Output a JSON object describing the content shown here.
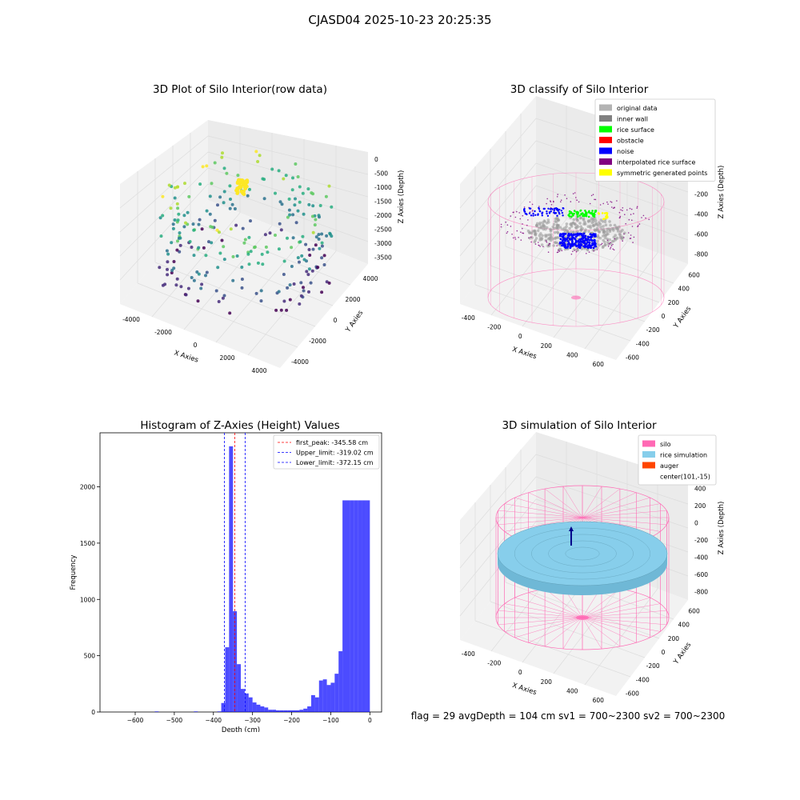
{
  "figure": {
    "title": "CJASD04 2025-10-23 20:25:35",
    "status": "flag = 29  avgDepth = 104 cm  sv1 = 700~2300  sv2 = 700~2300"
  },
  "chart_data": [
    {
      "type": "scatter",
      "title": "3D Plot of Silo Interior(row data)",
      "xlabel": "X Axies",
      "ylabel": "Y Axies",
      "zlabel": "Z Axies (Depth)",
      "x_ticks": [
        "-4000",
        "-2000",
        "0",
        "2000",
        "4000"
      ],
      "y_ticks": [
        "-4000",
        "-2000",
        "0",
        "2000",
        "4000"
      ],
      "z_ticks": [
        "0",
        "-500",
        "-1000",
        "-1500",
        "-2000",
        "-2500",
        "-3000",
        "-3500"
      ],
      "xlim": [
        -4500,
        4500
      ],
      "ylim": [
        -4500,
        4500
      ],
      "zlim": [
        -3800,
        100
      ],
      "colormap": "viridis",
      "grid": true
    },
    {
      "type": "scatter",
      "title": "3D classify of Silo Interior",
      "xlabel": "X Axies",
      "ylabel": "Y Axies",
      "zlabel": "Z Axies (Depth)",
      "x_ticks": [
        "-400",
        "-200",
        "0",
        "200",
        "400",
        "600"
      ],
      "y_ticks": [
        "-600",
        "-400",
        "-200",
        "0",
        "200",
        "400",
        "600"
      ],
      "z_ticks": [
        "200",
        "0",
        "-200",
        "-400",
        "-600",
        "-800"
      ],
      "xlim": [
        -550,
        750
      ],
      "ylim": [
        -650,
        650
      ],
      "zlim": [
        -900,
        300
      ],
      "grid": true,
      "legend_position": "top-right",
      "legend": [
        {
          "label": "original data",
          "color": "#b3b3b3"
        },
        {
          "label": "inner wall",
          "color": "#808080"
        },
        {
          "label": "rice surface",
          "color": "#00ff00"
        },
        {
          "label": "obstacle",
          "color": "#ff0000"
        },
        {
          "label": "noise",
          "color": "#0000ff"
        },
        {
          "label": "interpolated rice surface",
          "color": "#800080"
        },
        {
          "label": "symmetric generated points",
          "color": "#ffff00"
        }
      ]
    },
    {
      "type": "bar",
      "title": "Histogram of Z-Axies (Height) Values",
      "xlabel": "Depth (cm)",
      "ylabel": "Frequency",
      "xlim": [
        -690,
        30
      ],
      "ylim": [
        0,
        2480
      ],
      "x_ticks": [
        -600,
        -500,
        -400,
        -300,
        -200,
        -100,
        0
      ],
      "y_ticks": [
        0,
        500,
        1000,
        1500,
        2000
      ],
      "bin_width": 10,
      "bin_starts": [
        -550,
        -450,
        -390,
        -380,
        -370,
        -360,
        -350,
        -340,
        -330,
        -320,
        -310,
        -300,
        -290,
        -280,
        -270,
        -260,
        -250,
        -240,
        -230,
        -220,
        -210,
        -200,
        -190,
        -180,
        -170,
        -160,
        -150,
        -140,
        -130,
        -120,
        -110,
        -100,
        -90,
        -80,
        -70,
        -60,
        -50,
        -40,
        -30,
        -20,
        -10
      ],
      "values": [
        5,
        5,
        5,
        80,
        575,
        2360,
        895,
        425,
        205,
        165,
        130,
        85,
        65,
        50,
        40,
        20,
        20,
        15,
        15,
        15,
        15,
        15,
        15,
        20,
        30,
        50,
        150,
        130,
        280,
        290,
        240,
        260,
        340,
        540,
        1880,
        1880,
        1880,
        1880,
        1880,
        1880,
        1880
      ],
      "color": "#0000ff",
      "legend_position": "top-right",
      "lines": [
        {
          "label": "first_peak: -345.58 cm",
          "x": -345.58,
          "color": "#ff0000"
        },
        {
          "label": "Upper_limit: -319.02 cm",
          "x": -319.02,
          "color": "#0000ff"
        },
        {
          "label": "Lower_limit: -372.15 cm",
          "x": -372.15,
          "color": "#0000ff"
        }
      ]
    },
    {
      "type": "surface",
      "title": "3D simulation of Silo Interior",
      "xlabel": "X Axies",
      "ylabel": "Y Axies",
      "zlabel": "Z Axies (Depth)",
      "x_ticks": [
        "-400",
        "-200",
        "0",
        "200",
        "400",
        "600"
      ],
      "y_ticks": [
        "-600",
        "-400",
        "-200",
        "0",
        "200",
        "400",
        "600"
      ],
      "z_ticks": [
        "400",
        "200",
        "0",
        "-200",
        "-400",
        "-600",
        "-800"
      ],
      "xlim": [
        -550,
        750
      ],
      "ylim": [
        -650,
        650
      ],
      "zlim": [
        -900,
        450
      ],
      "grid": true,
      "legend_position": "top-right",
      "legend": [
        {
          "label": "silo",
          "color": "#ff69b4"
        },
        {
          "label": "rice simulation",
          "color": "#87ceeb"
        },
        {
          "label": "auger",
          "color": "#ff4500"
        },
        {
          "label": "center(101,-15)",
          "color": "none"
        }
      ]
    }
  ],
  "colors": {
    "pane": "#f2f2f2",
    "pane_side": "#ebebeb",
    "grid": "#dddddd",
    "silo": "#ff69b4",
    "rice": "#87ceeb",
    "hist": "#0000ff"
  }
}
